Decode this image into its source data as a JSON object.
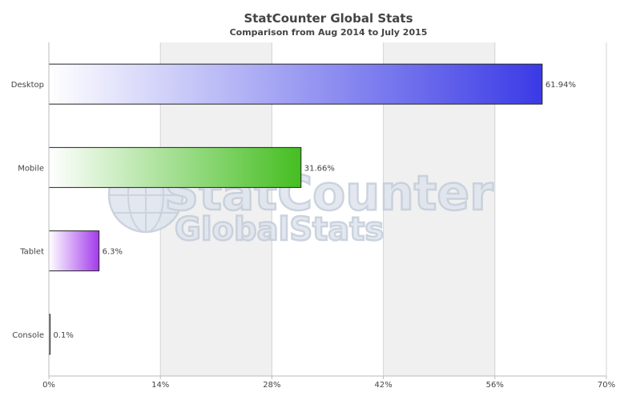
{
  "chart_data": {
    "type": "bar",
    "orientation": "horizontal",
    "title": "StatCounter Global Stats",
    "subtitle": "Comparison from Aug 2014 to July 2015",
    "categories": [
      "Desktop",
      "Mobile",
      "Tablet",
      "Console"
    ],
    "values": [
      61.94,
      31.66,
      6.3,
      0.1
    ],
    "value_labels": [
      "61.94%",
      "31.66%",
      "6.3%",
      "0.1%"
    ],
    "bar_colors": [
      "#3a3ae6",
      "#45be21",
      "#a23bec",
      "#333333"
    ],
    "xlim": [
      0,
      70
    ],
    "xticks": [
      0,
      14,
      28,
      42,
      56,
      70
    ],
    "xtick_labels": [
      "0%",
      "14%",
      "28%",
      "42%",
      "56%",
      "70%"
    ],
    "alternating_bands": true,
    "band_color": "#f0f0f0",
    "legend": "none"
  },
  "watermark": {
    "line1": "StatCounter",
    "line2": "GlobalStats",
    "icon": "globe-icon"
  }
}
